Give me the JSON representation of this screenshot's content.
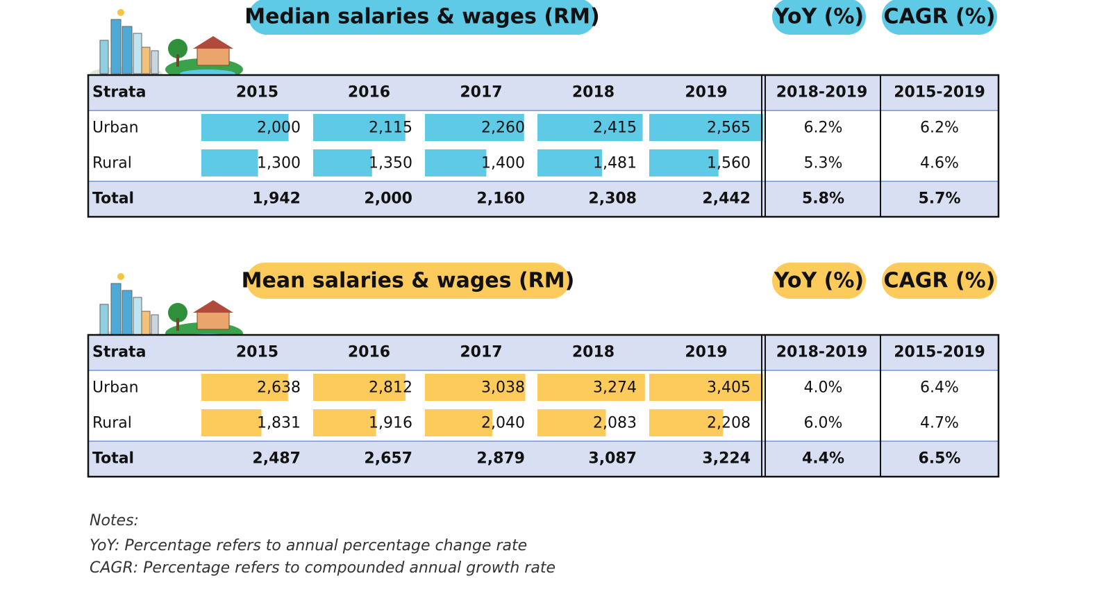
{
  "tables": [
    {
      "title": "Median salaries & wages (RM)",
      "yoy_heading": "YoY (%)",
      "cagr_heading": "CAGR (%)",
      "color": "#5ecae6",
      "columns": [
        "Strata",
        "2015",
        "2016",
        "2017",
        "2018",
        "2019",
        "2018-2019",
        "2015-2019"
      ],
      "rows": [
        {
          "label": "Urban",
          "values": [
            2000,
            2115,
            2260,
            2415,
            2565
          ],
          "value_labels": [
            "2,000",
            "2,115",
            "2,260",
            "2,415",
            "2,565"
          ],
          "yoy": "6.2%",
          "cagr": "6.2%"
        },
        {
          "label": "Rural",
          "values": [
            1300,
            1350,
            1400,
            1481,
            1560
          ],
          "value_labels": [
            "1,300",
            "1,350",
            "1,400",
            "1,481",
            "1,560"
          ],
          "yoy": "5.3%",
          "cagr": "4.6%"
        }
      ],
      "total": {
        "label": "Total",
        "cells": [
          "1,942",
          "2,000",
          "2,160",
          "2,308",
          "2,442"
        ],
        "yoy": "5.8%",
        "cagr": "5.7%"
      }
    },
    {
      "title": "Mean salaries & wages (RM)",
      "yoy_heading": "YoY (%)",
      "cagr_heading": "CAGR (%)",
      "color": "#fdcb5c",
      "columns": [
        "Strata",
        "2015",
        "2016",
        "2017",
        "2018",
        "2019",
        "2018-2019",
        "2015-2019"
      ],
      "rows": [
        {
          "label": "Urban",
          "values": [
            2638,
            2812,
            3038,
            3274,
            3405
          ],
          "value_labels": [
            "2,638",
            "2,812",
            "3,038",
            "3,274",
            "3,405"
          ],
          "yoy": "4.0%",
          "cagr": "6.4%"
        },
        {
          "label": "Rural",
          "values": [
            1831,
            1916,
            2040,
            2083,
            2208
          ],
          "value_labels": [
            "1,831",
            "1,916",
            "2,040",
            "2,083",
            "2,208"
          ],
          "yoy": "6.0%",
          "cagr": "4.7%"
        }
      ],
      "total": {
        "label": "Total",
        "cells": [
          "2,487",
          "2,657",
          "2,879",
          "3,087",
          "3,224"
        ],
        "yoy": "4.4%",
        "cagr": "6.5%"
      }
    }
  ],
  "notes": {
    "heading": "Notes:",
    "lines": [
      "YoY: Percentage refers to annual percentage change rate",
      "CAGR: Percentage refers to compounded annual growth rate"
    ]
  }
}
